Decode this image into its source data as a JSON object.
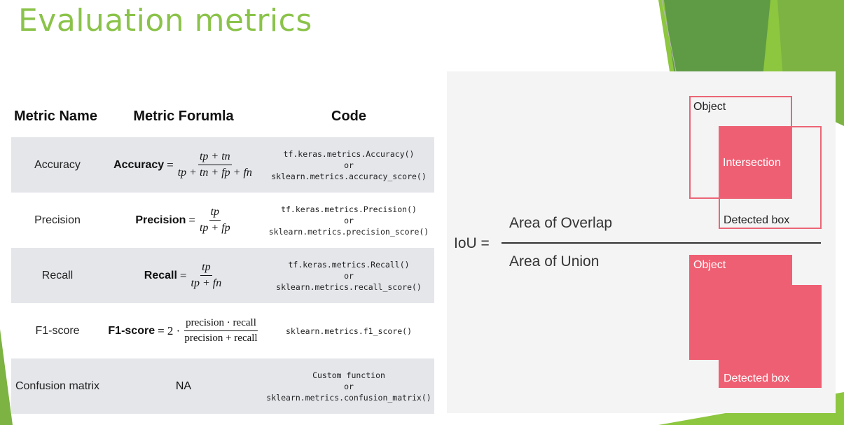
{
  "slide": {
    "title": "Evaluation metrics"
  },
  "table": {
    "headers": {
      "name": "Metric Name",
      "formula": "Metric Forumla",
      "code": "Code"
    },
    "rows": [
      {
        "name": "Accuracy",
        "formula": {
          "label": "Accuracy",
          "eq": "=",
          "numerator": "tp + tn",
          "denominator": "tp + tn + fp + fn"
        },
        "code": [
          "tf.keras.metrics.Accuracy()",
          "or",
          "sklearn.metrics.accuracy_score()"
        ]
      },
      {
        "name": "Precision",
        "formula": {
          "label": "Precision",
          "eq": "=",
          "numerator": "tp",
          "denominator": "tp + fp"
        },
        "code": [
          "tf.keras.metrics.Precision()",
          "or",
          "sklearn.metrics.precision_score()"
        ]
      },
      {
        "name": "Recall",
        "formula": {
          "label": "Recall",
          "eq": "=",
          "numerator": "tp",
          "denominator": "tp + fn"
        },
        "code": [
          "tf.keras.metrics.Recall()",
          "or",
          "sklearn.metrics.recall_score()"
        ]
      },
      {
        "name": "F1-score",
        "formula": {
          "label": "F1-score",
          "eq": "= 2 ·",
          "numerator": "precision · recall",
          "denominator": "precision + recall"
        },
        "code": [
          "sklearn.metrics.f1_score()"
        ]
      },
      {
        "name": "Confusion matrix",
        "formula_text": "NA",
        "code": [
          "Custom function",
          "or",
          "sklearn.metrics.confusion_matrix()"
        ]
      }
    ]
  },
  "iou": {
    "lhs": "IoU =",
    "numerator": "Area of Overlap",
    "denominator": "Area of Union",
    "top_diagram": {
      "object_label": "Object",
      "intersection_label": "Intersection",
      "detected_label": "Detected box"
    },
    "bottom_diagram": {
      "object_label": "Object",
      "detected_label": "Detected box"
    }
  },
  "colors": {
    "title_green": "#8bc34a",
    "accent_dark_green": "#5f9a45",
    "accent_light_green": "#8dc63f",
    "row_shade": "#e4e6ea",
    "box_fill": "#ef5f73",
    "box_outline": "#ec6576"
  }
}
